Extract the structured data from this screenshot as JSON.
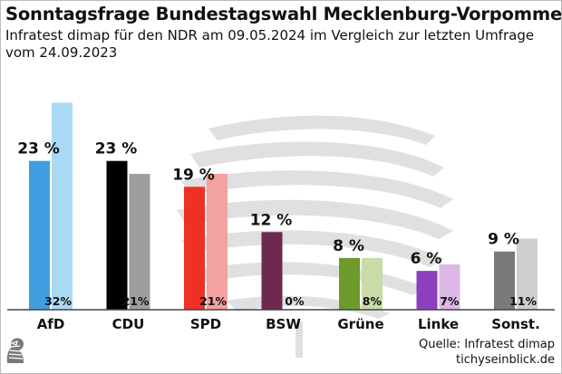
{
  "header": {
    "title": "Sonntagsfrage Bundestagswahl Mecklenburg-Vorpommern",
    "subtitle": "Infratest dimap für den NDR am 09.05.2024 im Vergleich zur letzten Umfrage vom 24.09.2023"
  },
  "footer": {
    "source": "Quelle: Infratest dimap",
    "site": "tichyseinblick.de"
  },
  "chart_data": {
    "type": "bar",
    "categories": [
      "AfD",
      "CDU",
      "SPD",
      "BSW",
      "Grüne",
      "Linke",
      "Sonst."
    ],
    "series": [
      {
        "values": [
          23,
          23,
          19,
          12,
          8,
          6,
          9
        ],
        "labels": [
          "23 %",
          "23 %",
          "19 %",
          "12 %",
          "8 %",
          "6 %",
          "9 %"
        ],
        "colors": [
          "#3f9fe0",
          "#000000",
          "#ee3124",
          "#6d2a4f",
          "#6d9a2a",
          "#8e3fbe",
          "#7a7a7a"
        ]
      },
      {
        "values": [
          32,
          21,
          21,
          0,
          8,
          7,
          11
        ],
        "labels": [
          "32%",
          "21%",
          "21%",
          "0%",
          "8%",
          "7%",
          "11%"
        ],
        "colors": [
          "#a9d9f3",
          "#9e9e9e",
          "#f3a1a1",
          "#d9c6d0",
          "#c9dba6",
          "#dbb8e6",
          "#cfcfcf"
        ]
      }
    ],
    "ylim": [
      0,
      35
    ],
    "grid": false,
    "legend": "none"
  }
}
